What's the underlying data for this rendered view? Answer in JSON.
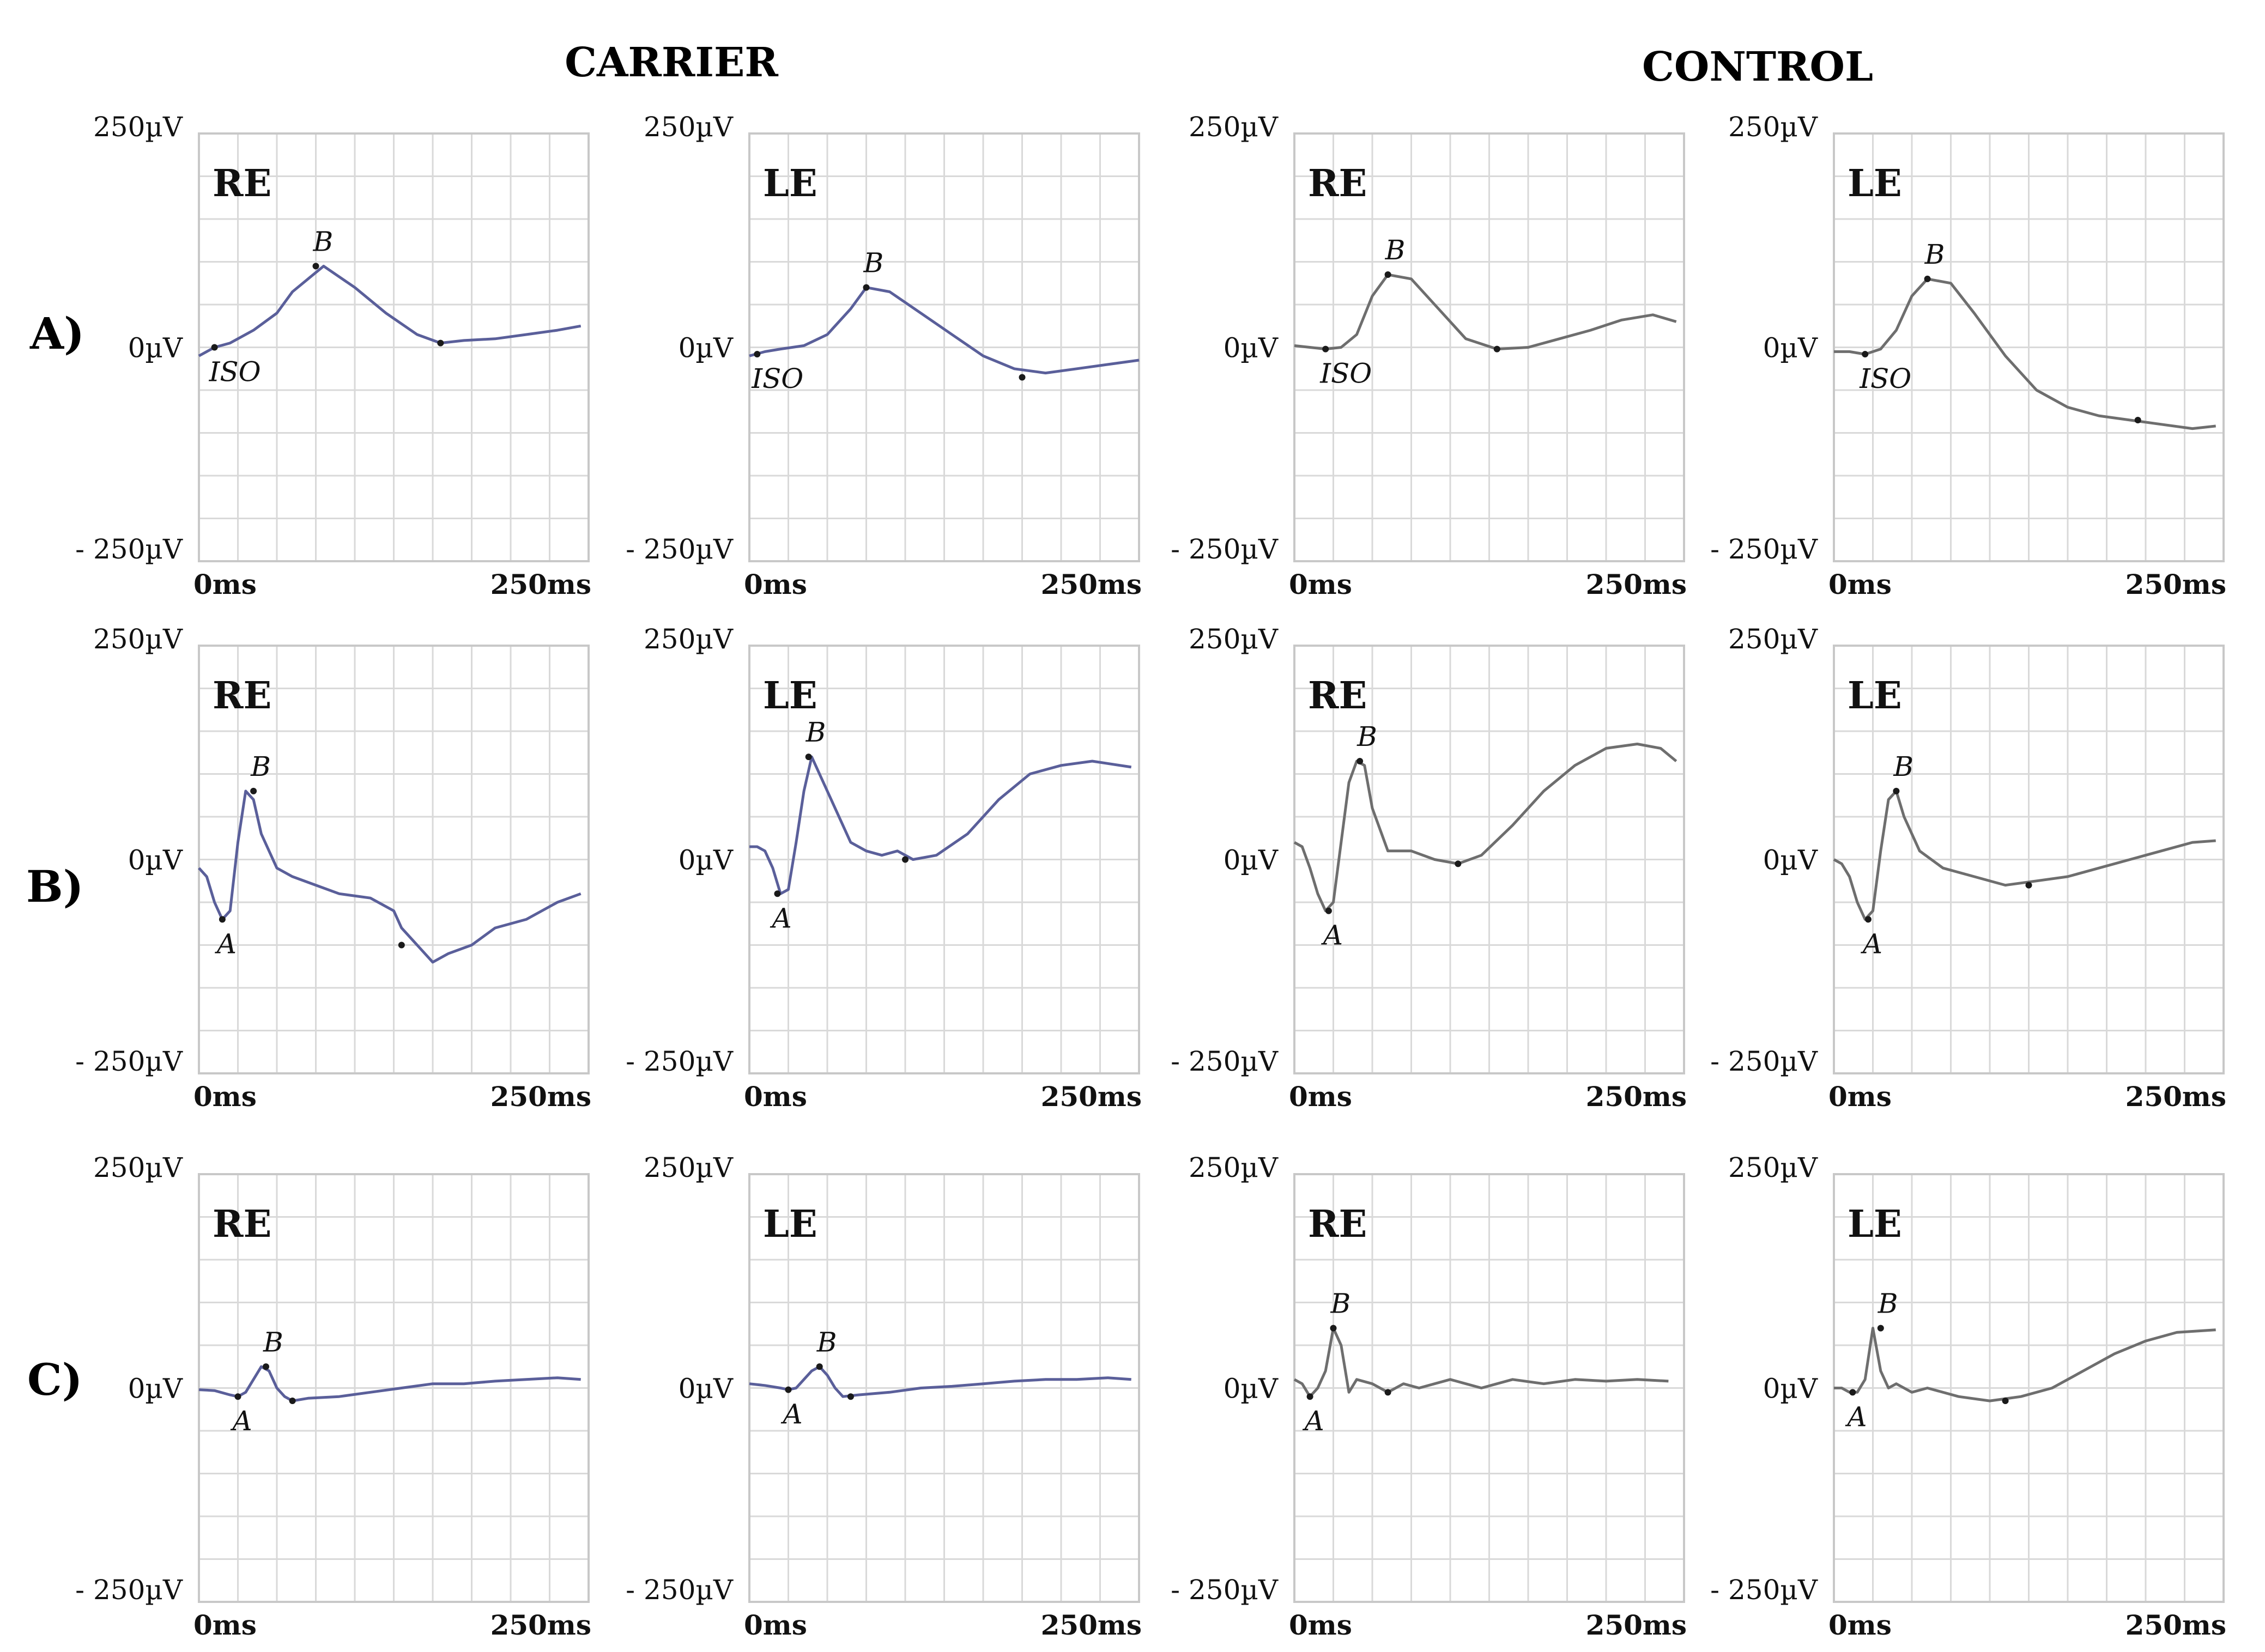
{
  "figure": {
    "group_titles": [
      "CARRIER",
      "CONTROL"
    ],
    "row_labels": [
      "A)",
      "B)",
      "C)"
    ]
  },
  "colors": {
    "carrier_trace": "#5a5f9a",
    "control_trace": "#6e6e6e",
    "grid": "#d9d9d9",
    "frame": "#c8c8c8",
    "marker": "#1a1a1a"
  },
  "chart_data": [
    {
      "type": "line",
      "row": "A)",
      "group": "CARRIER",
      "panel_label": "RE",
      "y_top_label": "250µV",
      "y_zero_label": "0µV",
      "y_bottom_label": "- 250µV",
      "x_start_label": "0ms",
      "x_end_label": "250ms",
      "xlim": [
        0,
        250
      ],
      "ylim": [
        -250,
        250
      ],
      "grid": true,
      "series": [
        {
          "x": [
            0,
            10,
            20,
            35,
            50,
            60,
            70,
            80,
            100,
            120,
            140,
            155,
            170,
            190,
            210,
            230,
            245
          ],
          "y": [
            -10,
            0,
            5,
            20,
            40,
            65,
            80,
            95,
            70,
            40,
            15,
            5,
            8,
            10,
            15,
            20,
            25
          ]
        }
      ],
      "markers": [
        {
          "label": "ISO",
          "x": 10,
          "y": 0
        },
        {
          "label": "B",
          "x": 75,
          "y": 95
        },
        {
          "label": "",
          "x": 155,
          "y": 5
        }
      ]
    },
    {
      "type": "line",
      "row": "A)",
      "group": "CARRIER",
      "panel_label": "LE",
      "y_top_label": "250µV",
      "y_zero_label": "0µV",
      "y_bottom_label": "- 250µV",
      "x_start_label": "0ms",
      "x_end_label": "250ms",
      "xlim": [
        0,
        250
      ],
      "ylim": [
        -250,
        250
      ],
      "grid": true,
      "series": [
        {
          "x": [
            0,
            10,
            20,
            35,
            50,
            65,
            75,
            90,
            110,
            130,
            150,
            170,
            190,
            210,
            230,
            250
          ],
          "y": [
            -10,
            -5,
            -2,
            2,
            15,
            45,
            70,
            65,
            40,
            15,
            -10,
            -25,
            -30,
            -25,
            -20,
            -15
          ]
        }
      ],
      "markers": [
        {
          "label": "ISO",
          "x": 5,
          "y": -8
        },
        {
          "label": "B",
          "x": 75,
          "y": 70
        },
        {
          "label": "",
          "x": 175,
          "y": -35
        }
      ]
    },
    {
      "type": "line",
      "row": "A)",
      "group": "CONTROL",
      "panel_label": "RE",
      "y_top_label": "250µV",
      "y_zero_label": "0µV",
      "y_bottom_label": "- 250µV",
      "x_start_label": "0ms",
      "x_end_label": "250ms",
      "xlim": [
        0,
        250
      ],
      "ylim": [
        -250,
        250
      ],
      "grid": true,
      "series": [
        {
          "x": [
            0,
            10,
            20,
            30,
            40,
            50,
            60,
            75,
            90,
            110,
            130,
            150,
            170,
            190,
            210,
            230,
            245
          ],
          "y": [
            2,
            0,
            -2,
            0,
            15,
            60,
            85,
            80,
            50,
            10,
            -2,
            0,
            10,
            20,
            32,
            38,
            30
          ]
        }
      ],
      "markers": [
        {
          "label": "ISO",
          "x": 20,
          "y": -2
        },
        {
          "label": "B",
          "x": 60,
          "y": 85
        },
        {
          "label": "",
          "x": 130,
          "y": -2
        }
      ]
    },
    {
      "type": "line",
      "row": "A)",
      "group": "CONTROL",
      "panel_label": "LE",
      "y_top_label": "250µV",
      "y_zero_label": "0µV",
      "y_bottom_label": "- 250µV",
      "x_start_label": "0ms",
      "x_end_label": "250ms",
      "xlim": [
        0,
        250
      ],
      "ylim": [
        -250,
        250
      ],
      "grid": true,
      "series": [
        {
          "x": [
            0,
            10,
            20,
            30,
            40,
            50,
            60,
            75,
            90,
            110,
            130,
            150,
            170,
            190,
            210,
            230,
            245
          ],
          "y": [
            -5,
            -5,
            -8,
            -2,
            20,
            60,
            80,
            75,
            40,
            -10,
            -50,
            -70,
            -80,
            -85,
            -90,
            -95,
            -92
          ]
        }
      ],
      "markers": [
        {
          "label": "ISO",
          "x": 20,
          "y": -8
        },
        {
          "label": "B",
          "x": 60,
          "y": 80
        },
        {
          "label": "",
          "x": 195,
          "y": -85
        }
      ]
    },
    {
      "type": "line",
      "row": "B)",
      "group": "CARRIER",
      "panel_label": "RE",
      "y_top_label": "250µV",
      "y_zero_label": "0µV",
      "y_bottom_label": "- 250µV",
      "x_start_label": "0ms",
      "x_end_label": "250ms",
      "xlim": [
        0,
        250
      ],
      "ylim": [
        -250,
        250
      ],
      "grid": true,
      "series": [
        {
          "x": [
            0,
            5,
            10,
            15,
            20,
            25,
            30,
            35,
            40,
            50,
            60,
            75,
            90,
            110,
            125,
            130,
            140,
            150,
            160,
            175,
            190,
            210,
            230,
            245
          ],
          "y": [
            -10,
            -20,
            -50,
            -70,
            -60,
            20,
            80,
            70,
            30,
            -10,
            -20,
            -30,
            -40,
            -45,
            -60,
            -80,
            -100,
            -120,
            -110,
            -100,
            -80,
            -70,
            -50,
            -40
          ]
        }
      ],
      "markers": [
        {
          "label": "A",
          "x": 15,
          "y": -70
        },
        {
          "label": "B",
          "x": 35,
          "y": 80
        },
        {
          "label": "",
          "x": 130,
          "y": -100
        }
      ]
    },
    {
      "type": "line",
      "row": "B)",
      "group": "CARRIER",
      "panel_label": "LE",
      "y_top_label": "250µV",
      "y_zero_label": "0µV",
      "y_bottom_label": "- 250µV",
      "x_start_label": "0ms",
      "x_end_label": "250ms",
      "xlim": [
        0,
        250
      ],
      "ylim": [
        -250,
        250
      ],
      "grid": true,
      "series": [
        {
          "x": [
            0,
            5,
            10,
            15,
            20,
            25,
            30,
            35,
            40,
            45,
            55,
            65,
            75,
            85,
            95,
            105,
            120,
            140,
            160,
            180,
            200,
            220,
            245
          ],
          "y": [
            15,
            15,
            10,
            -10,
            -40,
            -35,
            20,
            80,
            120,
            100,
            60,
            20,
            10,
            5,
            10,
            0,
            5,
            30,
            70,
            100,
            110,
            115,
            108
          ]
        }
      ],
      "markers": [
        {
          "label": "A",
          "x": 18,
          "y": -40
        },
        {
          "label": "B",
          "x": 38,
          "y": 120
        },
        {
          "label": "",
          "x": 100,
          "y": 0
        }
      ]
    },
    {
      "type": "line",
      "row": "B)",
      "group": "CONTROL",
      "panel_label": "RE",
      "y_top_label": "250µV",
      "y_zero_label": "0µV",
      "y_bottom_label": "- 250µV",
      "x_start_label": "0ms",
      "x_end_label": "250ms",
      "xlim": [
        0,
        250
      ],
      "ylim": [
        -250,
        250
      ],
      "grid": true,
      "series": [
        {
          "x": [
            0,
            5,
            10,
            15,
            20,
            25,
            30,
            35,
            40,
            45,
            50,
            60,
            75,
            90,
            105,
            120,
            140,
            160,
            180,
            200,
            220,
            235,
            245
          ],
          "y": [
            20,
            15,
            -10,
            -40,
            -60,
            -50,
            20,
            90,
            115,
            110,
            60,
            10,
            10,
            0,
            -5,
            5,
            40,
            80,
            110,
            130,
            135,
            130,
            115
          ]
        }
      ],
      "markers": [
        {
          "label": "A",
          "x": 22,
          "y": -60
        },
        {
          "label": "B",
          "x": 42,
          "y": 115
        },
        {
          "label": "",
          "x": 105,
          "y": -5
        }
      ]
    },
    {
      "type": "line",
      "row": "B)",
      "group": "CONTROL",
      "panel_label": "LE",
      "y_top_label": "250µV",
      "y_zero_label": "0µV",
      "y_bottom_label": "- 250µV",
      "x_start_label": "0ms",
      "x_end_label": "250ms",
      "xlim": [
        0,
        250
      ],
      "ylim": [
        -250,
        250
      ],
      "grid": true,
      "series": [
        {
          "x": [
            0,
            5,
            10,
            15,
            20,
            25,
            30,
            35,
            40,
            45,
            55,
            70,
            90,
            110,
            130,
            150,
            170,
            190,
            210,
            230,
            245
          ],
          "y": [
            0,
            -5,
            -20,
            -50,
            -70,
            -60,
            10,
            70,
            80,
            50,
            10,
            -10,
            -20,
            -30,
            -25,
            -20,
            -10,
            0,
            10,
            20,
            22
          ]
        }
      ],
      "markers": [
        {
          "label": "A",
          "x": 22,
          "y": -70
        },
        {
          "label": "B",
          "x": 40,
          "y": 80
        },
        {
          "label": "",
          "x": 125,
          "y": -30
        }
      ]
    },
    {
      "type": "line",
      "row": "C)",
      "group": "CARRIER",
      "panel_label": "RE",
      "y_top_label": "250µV",
      "y_zero_label": "0µV",
      "y_bottom_label": "- 250µV",
      "x_start_label": "0ms",
      "x_end_label": "250ms",
      "xlim": [
        0,
        250
      ],
      "ylim": [
        -250,
        250
      ],
      "grid": true,
      "series": [
        {
          "x": [
            0,
            10,
            20,
            25,
            30,
            40,
            45,
            50,
            55,
            60,
            70,
            90,
            110,
            130,
            150,
            170,
            190,
            210,
            230,
            245
          ],
          "y": [
            -2,
            -3,
            -8,
            -10,
            -5,
            25,
            20,
            0,
            -10,
            -15,
            -12,
            -10,
            -5,
            0,
            5,
            5,
            8,
            10,
            12,
            10
          ]
        }
      ],
      "markers": [
        {
          "label": "A",
          "x": 25,
          "y": -10
        },
        {
          "label": "B",
          "x": 43,
          "y": 25
        },
        {
          "label": "",
          "x": 60,
          "y": -15
        }
      ]
    },
    {
      "type": "line",
      "row": "C)",
      "group": "CARRIER",
      "panel_label": "LE",
      "y_top_label": "250µV",
      "y_zero_label": "0µV",
      "y_bottom_label": "- 250µV",
      "x_start_label": "0ms",
      "x_end_label": "250ms",
      "xlim": [
        0,
        250
      ],
      "ylim": [
        -250,
        250
      ],
      "grid": true,
      "series": [
        {
          "x": [
            0,
            10,
            20,
            25,
            30,
            40,
            45,
            50,
            55,
            60,
            70,
            90,
            110,
            130,
            150,
            170,
            190,
            210,
            230,
            245
          ],
          "y": [
            5,
            3,
            0,
            -2,
            0,
            20,
            25,
            15,
            0,
            -10,
            -8,
            -5,
            0,
            2,
            5,
            8,
            10,
            10,
            12,
            10
          ]
        }
      ],
      "markers": [
        {
          "label": "A",
          "x": 25,
          "y": -2
        },
        {
          "label": "B",
          "x": 45,
          "y": 25
        },
        {
          "label": "",
          "x": 65,
          "y": -10
        }
      ]
    },
    {
      "type": "line",
      "row": "C)",
      "group": "CONTROL",
      "panel_label": "RE",
      "y_top_label": "250µV",
      "y_zero_label": "0µV",
      "y_bottom_label": "- 250µV",
      "x_start_label": "0ms",
      "x_end_label": "250ms",
      "xlim": [
        0,
        250
      ],
      "ylim": [
        -250,
        250
      ],
      "grid": true,
      "series": [
        {
          "x": [
            0,
            5,
            10,
            15,
            20,
            25,
            30,
            35,
            40,
            50,
            60,
            70,
            80,
            100,
            120,
            140,
            160,
            180,
            200,
            220,
            240
          ],
          "y": [
            10,
            5,
            -10,
            0,
            20,
            70,
            50,
            -5,
            10,
            5,
            -5,
            5,
            0,
            10,
            0,
            10,
            5,
            10,
            8,
            10,
            8
          ]
        }
      ],
      "markers": [
        {
          "label": "A",
          "x": 10,
          "y": -10
        },
        {
          "label": "B",
          "x": 25,
          "y": 70
        },
        {
          "label": "",
          "x": 60,
          "y": -5
        }
      ]
    },
    {
      "type": "line",
      "row": "C)",
      "group": "CONTROL",
      "panel_label": "LE",
      "y_top_label": "250µV",
      "y_zero_label": "0µV",
      "y_bottom_label": "- 250µV",
      "x_start_label": "0ms",
      "x_end_label": "250ms",
      "xlim": [
        0,
        250
      ],
      "ylim": [
        -250,
        250
      ],
      "grid": true,
      "series": [
        {
          "x": [
            0,
            5,
            10,
            15,
            20,
            25,
            30,
            35,
            40,
            50,
            60,
            80,
            100,
            120,
            140,
            160,
            180,
            200,
            220,
            245
          ],
          "y": [
            0,
            0,
            -5,
            -5,
            10,
            70,
            20,
            0,
            5,
            -5,
            0,
            -10,
            -15,
            -10,
            0,
            20,
            40,
            55,
            65,
            68
          ]
        }
      ],
      "markers": [
        {
          "label": "A",
          "x": 12,
          "y": -5
        },
        {
          "label": "B",
          "x": 30,
          "y": 70
        },
        {
          "label": "",
          "x": 110,
          "y": -15
        }
      ]
    }
  ]
}
